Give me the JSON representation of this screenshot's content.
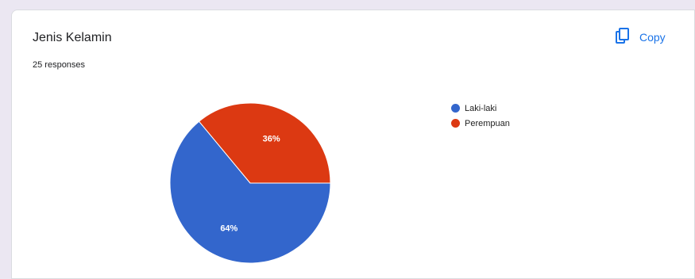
{
  "card": {
    "title": "Jenis Kelamin",
    "responses": "25 responses",
    "copy_label": "Copy",
    "copy_icon": "copy-icon"
  },
  "colors": {
    "accent": "#1a73e8",
    "series": [
      "#3366cc",
      "#dc3912"
    ]
  },
  "chart_data": {
    "type": "pie",
    "title": "Jenis Kelamin",
    "categories": [
      "Laki-laki",
      "Perempuan"
    ],
    "values": [
      64,
      36
    ],
    "data_labels": [
      "64%",
      "36%"
    ],
    "legend_position": "right"
  }
}
